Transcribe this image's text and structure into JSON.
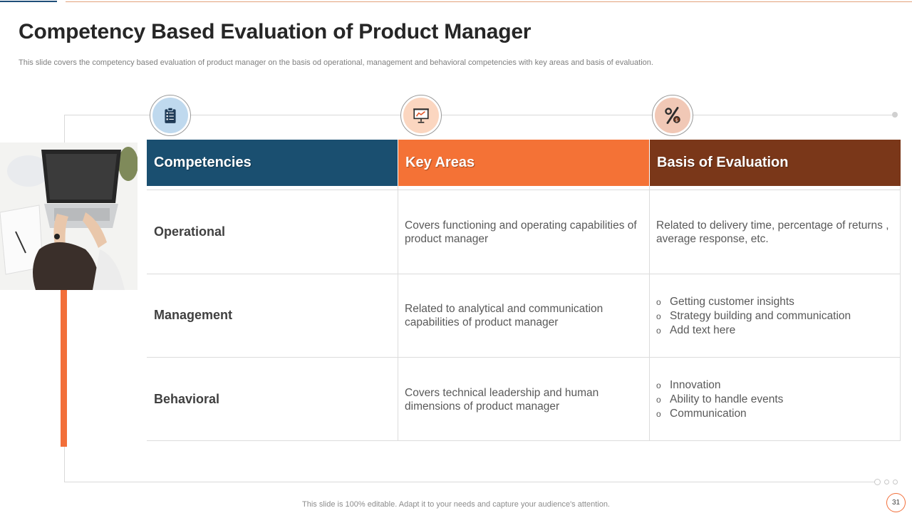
{
  "slide": {
    "title": "Competency Based Evaluation of Product Manager",
    "subtitle": "This slide covers the competency based evaluation of product manager on the basis od operational, management and behavioral competencies with key areas and basis of evaluation.",
    "footer": "This slide is 100% editable. Adapt it to your needs and capture your audience's attention.",
    "page_number": "31"
  },
  "icons": {
    "competencies": "clipboard-checklist-icon",
    "key_areas": "presentation-chart-icon",
    "evaluation": "percent-icon"
  },
  "colors": {
    "competencies_header": "#1a4f70",
    "key_areas_header": "#f47236",
    "evaluation_header": "#7a3719",
    "accent_orange": "#f26f3a"
  },
  "table": {
    "headers": [
      "Competencies",
      "Key Areas",
      "Basis of Evaluation"
    ],
    "rows": [
      {
        "competency": "Operational",
        "key_area": "Covers functioning and operating capabilities of product manager",
        "evaluation_text": "Related to delivery time, percentage of returns , average response, etc."
      },
      {
        "competency": "Management",
        "key_area": "Related to analytical and communication capabilities of product manager",
        "evaluation_bullets": [
          "Getting customer insights",
          "Strategy building and communication",
          "Add text here"
        ]
      },
      {
        "competency": "Behavioral",
        "key_area": "Covers technical leadership and human dimensions of product manager",
        "evaluation_bullets": [
          "Innovation",
          "Ability to handle events",
          "Communication"
        ]
      }
    ]
  }
}
